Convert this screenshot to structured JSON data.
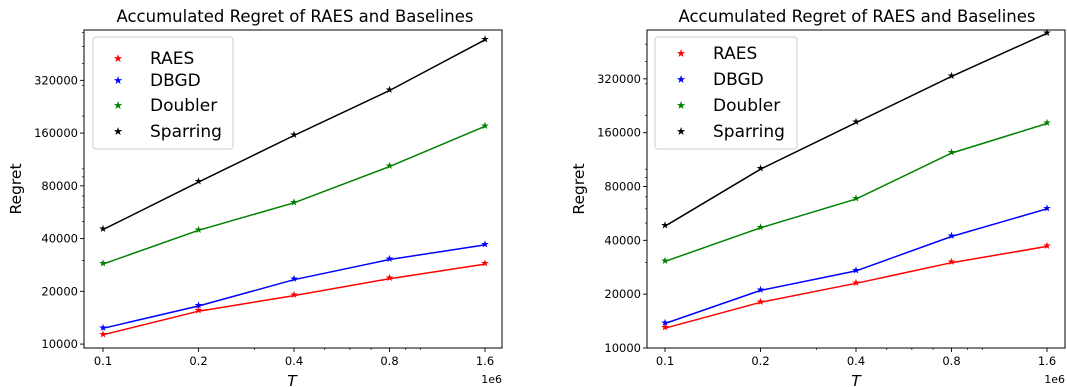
{
  "chart_data": [
    {
      "type": "line",
      "title": "Accumulated Regret of RAES and Baselines",
      "xlabel": "T",
      "ylabel": "Regret",
      "x_scale": "log2",
      "y_scale": "log2",
      "x_offset_label": "1e6",
      "x": [
        0.1,
        0.2,
        0.4,
        0.8,
        1.6
      ],
      "x_tick_labels": [
        "0.1",
        "0.2",
        "0.4",
        "0.8",
        "1.6"
      ],
      "yticks": [
        10000,
        20000,
        40000,
        80000,
        160000,
        320000
      ],
      "y_tick_labels": [
        "10000",
        "20000",
        "40000",
        "80000",
        "160000",
        "320000"
      ],
      "ylim": [
        9500,
        620000
      ],
      "legend": "top-left",
      "grid": false,
      "series": [
        {
          "name": "RAES",
          "color": "#ff0000",
          "values": [
            11300,
            15400,
            18900,
            23600,
            28600
          ]
        },
        {
          "name": "DBGD",
          "color": "#0000ff",
          "values": [
            12300,
            16500,
            23300,
            30400,
            36800
          ]
        },
        {
          "name": "Doubler",
          "color": "#008000",
          "values": [
            28600,
            44600,
            64000,
            103000,
            175000
          ]
        },
        {
          "name": "Sparring",
          "color": "#000000",
          "values": [
            45000,
            84000,
            155000,
            280000,
            545000
          ]
        }
      ]
    },
    {
      "type": "line",
      "title": "Accumulated Regret of RAES and Baselines",
      "xlabel": "T",
      "ylabel": "Regret",
      "x_scale": "log2",
      "y_scale": "log2",
      "x_offset_label": "1e6",
      "x": [
        0.1,
        0.2,
        0.4,
        0.8,
        1.6
      ],
      "x_tick_labels": [
        "0.1",
        "0.2",
        "0.4",
        "0.8",
        "1.6"
      ],
      "yticks": [
        10000,
        20000,
        40000,
        80000,
        160000,
        320000
      ],
      "y_tick_labels": [
        "10000",
        "20000",
        "40000",
        "80000",
        "160000",
        "320000"
      ],
      "ylim": [
        10000,
        600000
      ],
      "legend": "top-left",
      "grid": false,
      "series": [
        {
          "name": "RAES",
          "color": "#ff0000",
          "values": [
            12900,
            18000,
            23000,
            30000,
            37000
          ]
        },
        {
          "name": "DBGD",
          "color": "#0000ff",
          "values": [
            13700,
            21000,
            27000,
            42000,
            60000
          ]
        },
        {
          "name": "Doubler",
          "color": "#008000",
          "values": [
            30500,
            47000,
            68000,
            123000,
            180000
          ]
        },
        {
          "name": "Sparring",
          "color": "#000000",
          "values": [
            48000,
            100000,
            182000,
            330000,
            575000
          ]
        }
      ]
    }
  ]
}
